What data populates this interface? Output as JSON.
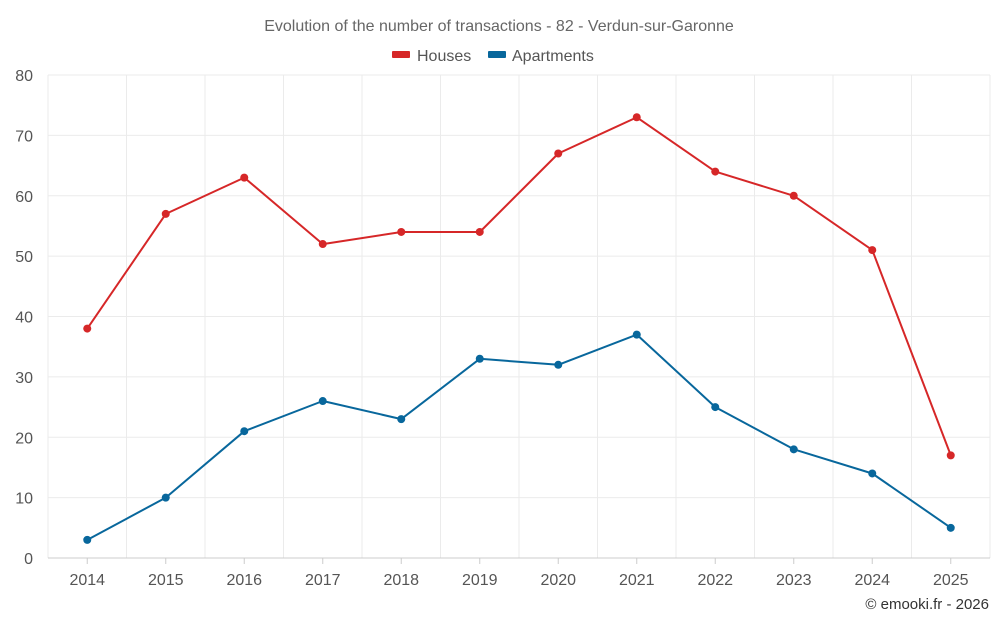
{
  "chart_data": {
    "type": "line",
    "title": "Evolution of the number of transactions - 82 - Verdun-sur-Garonne",
    "categories": [
      "2014",
      "2015",
      "2016",
      "2017",
      "2018",
      "2019",
      "2020",
      "2021",
      "2022",
      "2023",
      "2024",
      "2025"
    ],
    "series": [
      {
        "name": "Houses",
        "color": "#d62728",
        "values": [
          38,
          57,
          63,
          52,
          54,
          54,
          67,
          73,
          64,
          60,
          51,
          17
        ]
      },
      {
        "name": "Apartments",
        "color": "#08679c",
        "values": [
          3,
          10,
          21,
          26,
          23,
          33,
          32,
          37,
          25,
          18,
          14,
          5
        ]
      }
    ],
    "ylim": [
      0,
      80
    ],
    "yticks": [
      0,
      10,
      20,
      30,
      40,
      50,
      60,
      70,
      80
    ],
    "xlabel": "",
    "ylabel": "",
    "grid": true,
    "legend_position": "top-center"
  },
  "credit": "© emooki.fr - 2026"
}
